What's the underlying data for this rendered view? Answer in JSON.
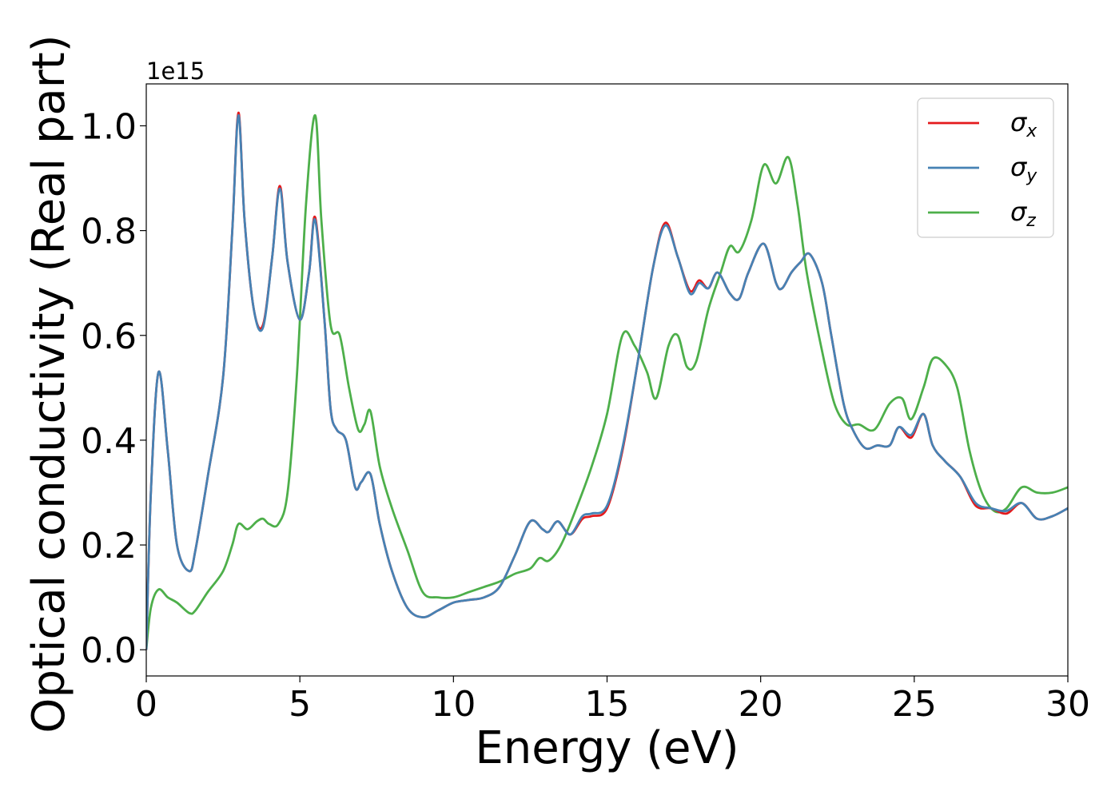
{
  "chart_data": {
    "type": "line",
    "title": "",
    "xlabel": "Energy (eV)",
    "ylabel": "Optical conductivity (Real part)",
    "y_offset_label": "1e15",
    "xlim": [
      0,
      30
    ],
    "ylim": [
      -0.05,
      1.08
    ],
    "xticks": [
      0,
      5,
      10,
      15,
      20,
      25,
      30
    ],
    "xtick_labels": [
      "0",
      "5",
      "10",
      "15",
      "20",
      "25",
      "30"
    ],
    "yticks": [
      0.0,
      0.2,
      0.4,
      0.6,
      0.8,
      1.0
    ],
    "ytick_labels": [
      "0.0",
      "0.2",
      "0.4",
      "0.6",
      "0.8",
      "1.0"
    ],
    "grid": false,
    "legend_position": "top-right",
    "series": [
      {
        "name": "σx",
        "name_base": "σ",
        "name_sub": "x",
        "color": "#e41a1c",
        "x": [
          0,
          0.15,
          0.4,
          0.7,
          1.0,
          1.4,
          1.6,
          2.0,
          2.5,
          2.8,
          3.0,
          3.2,
          3.5,
          3.8,
          4.1,
          4.35,
          4.6,
          5.0,
          5.3,
          5.5,
          5.8,
          6.0,
          6.2,
          6.5,
          6.8,
          7.0,
          7.3,
          7.6,
          8.0,
          8.5,
          9.0,
          9.5,
          10.0,
          10.5,
          11.0,
          11.5,
          12.0,
          12.5,
          12.9,
          13.1,
          13.4,
          13.8,
          14.2,
          14.5,
          15.0,
          15.5,
          16.0,
          16.5,
          16.9,
          17.3,
          17.7,
          18.0,
          18.3,
          18.6,
          19.0,
          19.3,
          19.6,
          20.1,
          20.5,
          20.7,
          21.0,
          21.3,
          21.6,
          22.0,
          22.3,
          22.7,
          23.0,
          23.4,
          23.8,
          24.2,
          24.5,
          24.9,
          25.3,
          25.6,
          26.0,
          26.5,
          27.0,
          27.5,
          28.0,
          28.5,
          29.0,
          29.5,
          30.0
        ],
        "values": [
          0.0,
          0.3,
          0.53,
          0.38,
          0.2,
          0.15,
          0.19,
          0.33,
          0.52,
          0.8,
          1.025,
          0.82,
          0.65,
          0.62,
          0.75,
          0.885,
          0.74,
          0.63,
          0.72,
          0.825,
          0.63,
          0.46,
          0.42,
          0.4,
          0.31,
          0.32,
          0.335,
          0.24,
          0.15,
          0.08,
          0.062,
          0.075,
          0.09,
          0.095,
          0.1,
          0.12,
          0.18,
          0.245,
          0.23,
          0.225,
          0.245,
          0.22,
          0.25,
          0.255,
          0.27,
          0.38,
          0.55,
          0.73,
          0.815,
          0.75,
          0.685,
          0.705,
          0.69,
          0.72,
          0.68,
          0.67,
          0.72,
          0.775,
          0.7,
          0.69,
          0.72,
          0.74,
          0.755,
          0.7,
          0.6,
          0.47,
          0.42,
          0.385,
          0.39,
          0.39,
          0.425,
          0.405,
          0.45,
          0.39,
          0.36,
          0.33,
          0.275,
          0.27,
          0.26,
          0.28,
          0.25,
          0.255,
          0.27
        ]
      },
      {
        "name": "σy",
        "name_base": "σ",
        "name_sub": "y",
        "color": "#4682b4",
        "x": [
          0,
          0.15,
          0.4,
          0.7,
          1.0,
          1.4,
          1.6,
          2.0,
          2.5,
          2.8,
          3.0,
          3.2,
          3.5,
          3.8,
          4.1,
          4.35,
          4.6,
          5.0,
          5.3,
          5.5,
          5.8,
          6.0,
          6.2,
          6.5,
          6.8,
          7.0,
          7.3,
          7.6,
          8.0,
          8.5,
          9.0,
          9.5,
          10.0,
          10.5,
          11.0,
          11.5,
          12.0,
          12.5,
          12.9,
          13.1,
          13.4,
          13.8,
          14.2,
          14.5,
          15.0,
          15.5,
          16.0,
          16.5,
          16.9,
          17.3,
          17.7,
          18.0,
          18.3,
          18.6,
          19.0,
          19.3,
          19.6,
          20.1,
          20.5,
          20.7,
          21.0,
          21.3,
          21.6,
          22.0,
          22.3,
          22.7,
          23.0,
          23.4,
          23.8,
          24.2,
          24.5,
          24.9,
          25.3,
          25.6,
          26.0,
          26.5,
          27.0,
          27.5,
          28.0,
          28.5,
          29.0,
          29.5,
          30.0
        ],
        "values": [
          0.0,
          0.3,
          0.53,
          0.38,
          0.2,
          0.15,
          0.19,
          0.33,
          0.52,
          0.8,
          1.02,
          0.82,
          0.65,
          0.615,
          0.75,
          0.88,
          0.74,
          0.63,
          0.72,
          0.82,
          0.63,
          0.46,
          0.42,
          0.4,
          0.31,
          0.32,
          0.335,
          0.24,
          0.15,
          0.08,
          0.062,
          0.075,
          0.09,
          0.095,
          0.1,
          0.12,
          0.18,
          0.245,
          0.23,
          0.225,
          0.245,
          0.22,
          0.255,
          0.26,
          0.275,
          0.385,
          0.55,
          0.73,
          0.81,
          0.75,
          0.68,
          0.7,
          0.69,
          0.72,
          0.68,
          0.67,
          0.72,
          0.775,
          0.7,
          0.69,
          0.72,
          0.74,
          0.755,
          0.7,
          0.6,
          0.47,
          0.42,
          0.385,
          0.39,
          0.39,
          0.425,
          0.41,
          0.45,
          0.39,
          0.36,
          0.33,
          0.28,
          0.27,
          0.265,
          0.28,
          0.25,
          0.255,
          0.27
        ]
      },
      {
        "name": "σz",
        "name_base": "σ",
        "name_sub": "z",
        "color": "#4daf4a",
        "x": [
          0,
          0.15,
          0.4,
          0.7,
          1.0,
          1.4,
          1.6,
          2.0,
          2.5,
          2.8,
          3.0,
          3.3,
          3.6,
          3.8,
          4.0,
          4.3,
          4.6,
          4.9,
          5.2,
          5.5,
          5.7,
          6.0,
          6.3,
          6.6,
          6.9,
          7.1,
          7.3,
          7.6,
          8.0,
          8.5,
          9.0,
          9.5,
          10.0,
          10.5,
          11.0,
          11.5,
          12.0,
          12.5,
          12.8,
          13.1,
          13.5,
          14.0,
          14.5,
          15.0,
          15.5,
          15.9,
          16.3,
          16.6,
          17.0,
          17.3,
          17.6,
          17.9,
          18.3,
          18.7,
          19.0,
          19.3,
          19.7,
          20.1,
          20.5,
          20.9,
          21.2,
          21.5,
          22.0,
          22.4,
          22.8,
          23.2,
          23.7,
          24.2,
          24.6,
          24.9,
          25.3,
          25.6,
          26.0,
          26.4,
          26.8,
          27.2,
          27.6,
          28.0,
          28.5,
          29.0,
          29.5,
          30.0
        ],
        "values": [
          0.0,
          0.08,
          0.115,
          0.1,
          0.09,
          0.07,
          0.075,
          0.11,
          0.15,
          0.2,
          0.24,
          0.23,
          0.245,
          0.25,
          0.24,
          0.24,
          0.3,
          0.52,
          0.85,
          1.02,
          0.82,
          0.62,
          0.6,
          0.5,
          0.42,
          0.43,
          0.455,
          0.35,
          0.27,
          0.19,
          0.11,
          0.1,
          0.1,
          0.11,
          0.12,
          0.13,
          0.145,
          0.155,
          0.175,
          0.17,
          0.2,
          0.27,
          0.35,
          0.45,
          0.6,
          0.58,
          0.53,
          0.48,
          0.58,
          0.6,
          0.54,
          0.55,
          0.65,
          0.72,
          0.77,
          0.76,
          0.82,
          0.925,
          0.89,
          0.94,
          0.85,
          0.72,
          0.57,
          0.47,
          0.43,
          0.43,
          0.42,
          0.47,
          0.48,
          0.44,
          0.5,
          0.555,
          0.545,
          0.5,
          0.38,
          0.3,
          0.265,
          0.27,
          0.31,
          0.3,
          0.3,
          0.31
        ]
      }
    ]
  }
}
